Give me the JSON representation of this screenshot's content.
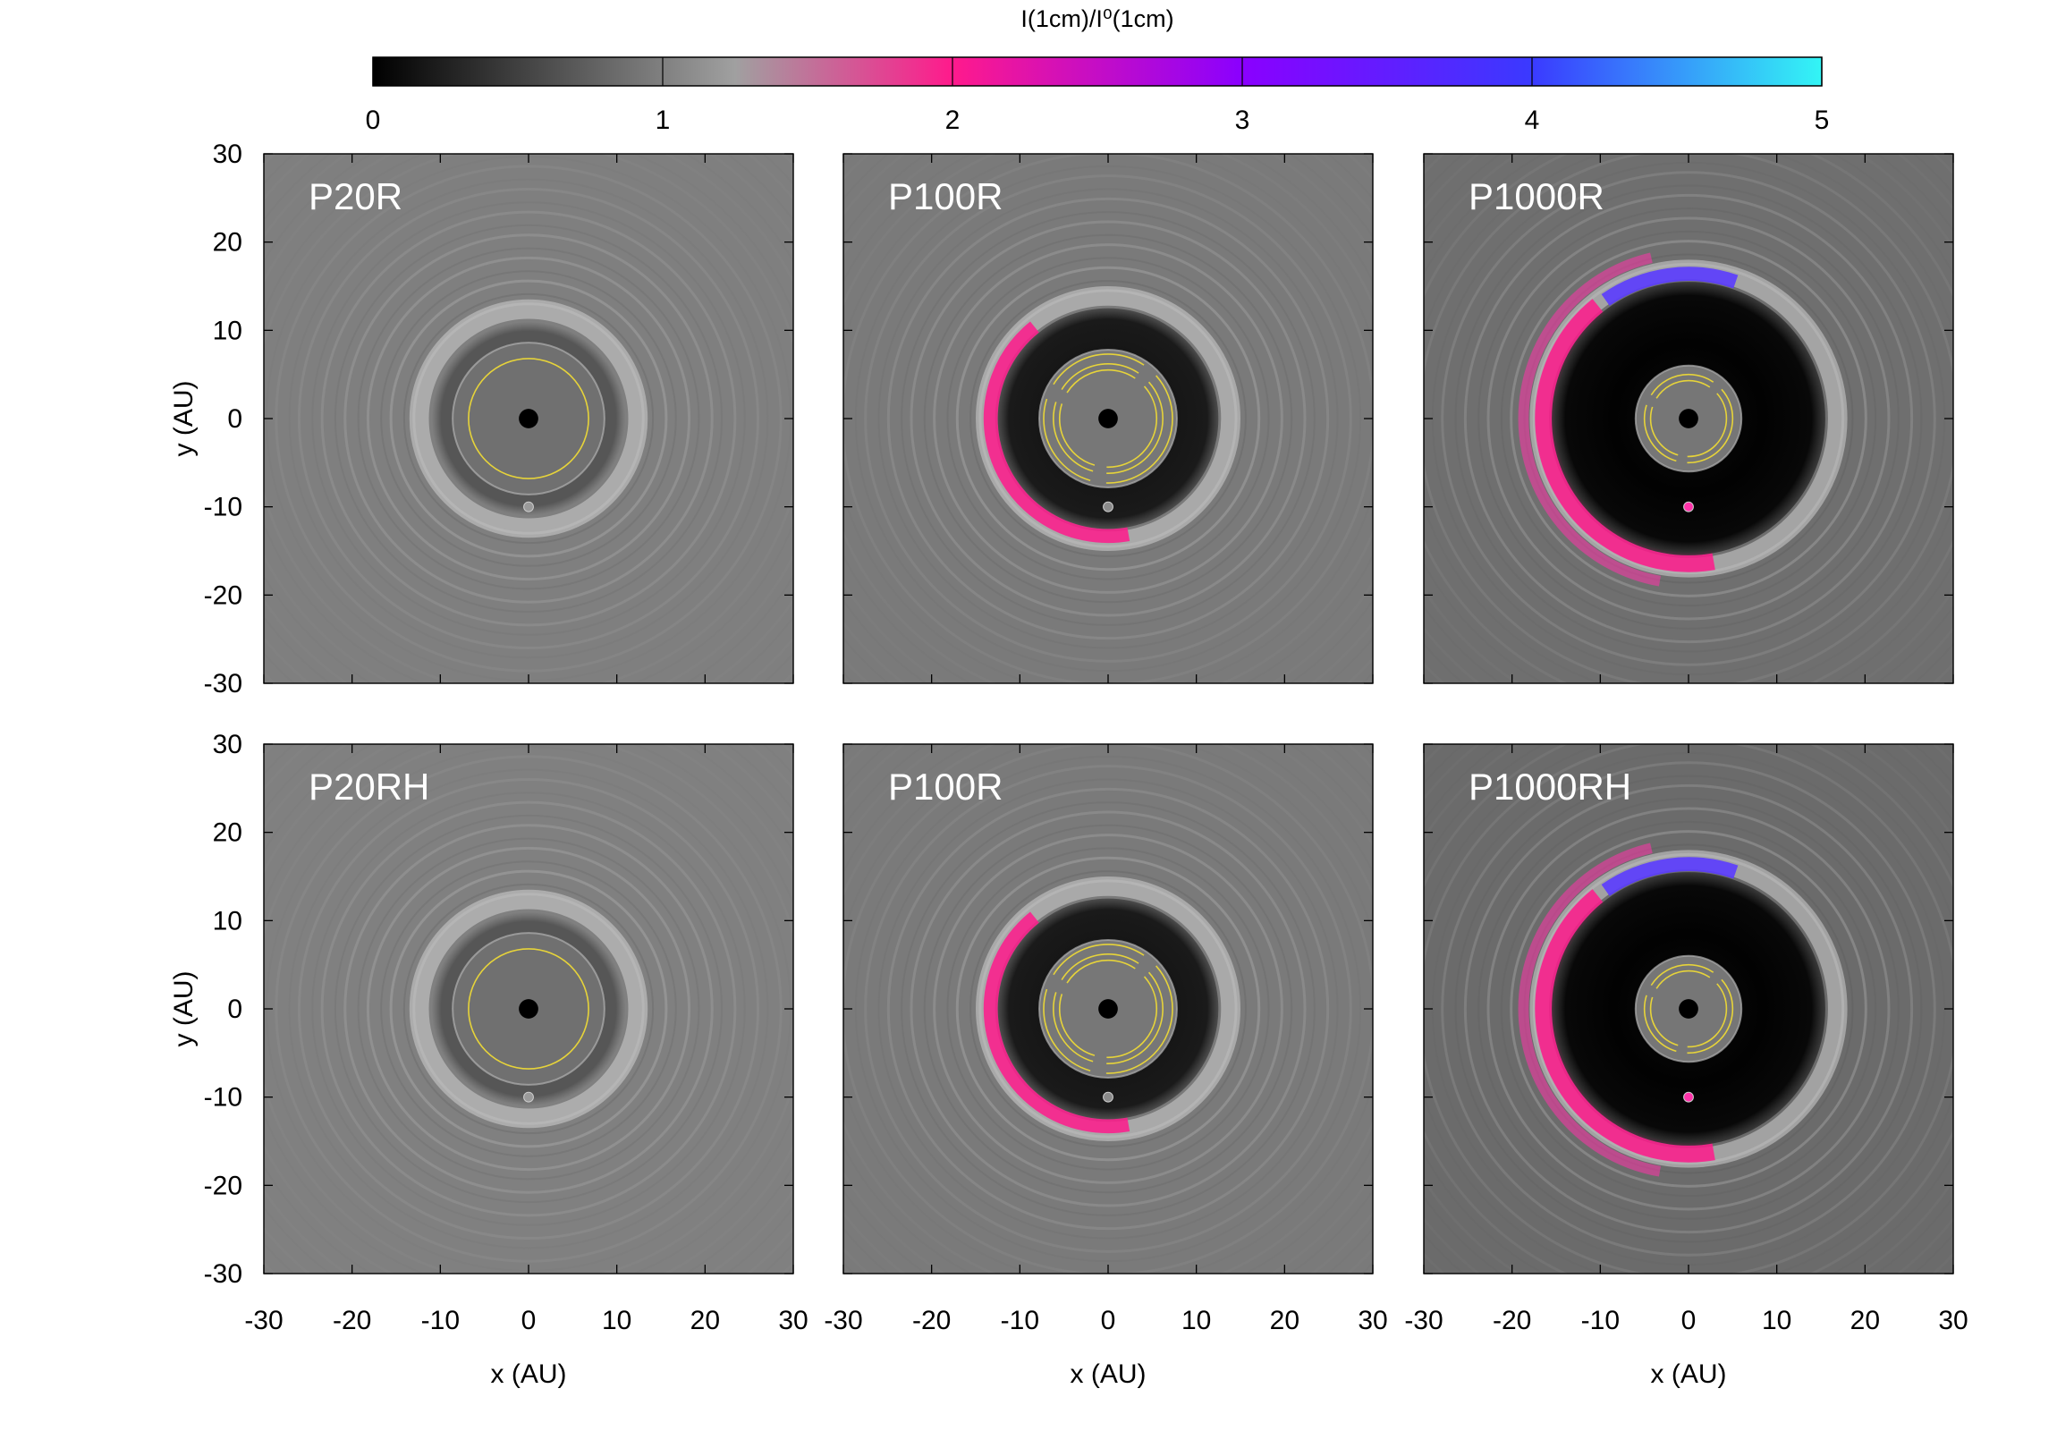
{
  "colorbar": {
    "title": "I(1cm)/I⁰(1cm)",
    "min": 0,
    "max": 5,
    "ticks": [
      "0",
      "1",
      "2",
      "3",
      "4",
      "5"
    ],
    "stops": [
      {
        "value": 0,
        "color": "#000000"
      },
      {
        "value": 1.25,
        "color": "#a0a0a0"
      },
      {
        "value": 2,
        "color": "#ff1a8c"
      },
      {
        "value": 3,
        "color": "#8a00ff"
      },
      {
        "value": 4,
        "color": "#3a3aff"
      },
      {
        "value": 5,
        "color": "#33f5f5"
      }
    ]
  },
  "chart_data": [
    {
      "type": "heatmap",
      "label": "P20R",
      "row": 0,
      "col": 0,
      "xlabel": "",
      "ylabel": "y (AU)",
      "xlim": [
        -30,
        30
      ],
      "ylim": [
        -30,
        30
      ],
      "background": "#7f7f7f",
      "gap_outer_radius": 11,
      "gap_depth": 0.35,
      "pink_arc": false,
      "blue_arc": false,
      "yellow_contours": [
        6.8
      ],
      "planet": [
        0,
        -10
      ],
      "planet_color": "#9a9a9a"
    },
    {
      "type": "heatmap",
      "label": "P100R",
      "row": 0,
      "col": 1,
      "xlabel": "",
      "ylabel": "",
      "xlim": [
        -30,
        30
      ],
      "ylim": [
        -30,
        30
      ],
      "background": "#7a7a7a",
      "gap_outer_radius": 12.5,
      "gap_depth": 0.85,
      "pink_arc": true,
      "blue_arc": false,
      "yellow_contours": [
        5.5,
        6.2,
        7.3
      ],
      "planet": [
        0,
        -10
      ],
      "planet_color": "#8a8a8a"
    },
    {
      "type": "heatmap",
      "label": "P1000R",
      "row": 0,
      "col": 2,
      "xlabel": "",
      "ylabel": "",
      "xlim": [
        -30,
        30
      ],
      "ylim": [
        -30,
        30
      ],
      "background": "#6f6f6f",
      "gap_outer_radius": 15.5,
      "gap_depth": 1.0,
      "pink_arc": true,
      "blue_arc": true,
      "yellow_contours": [
        4.3,
        5.0
      ],
      "planet": [
        0,
        -10
      ],
      "planet_color": "#ff33aa"
    },
    {
      "type": "heatmap",
      "label": "P20RH",
      "row": 1,
      "col": 0,
      "xlabel": "x (AU)",
      "ylabel": "y (AU)",
      "xlim": [
        -30,
        30
      ],
      "ylim": [
        -30,
        30
      ],
      "background": "#808080",
      "gap_outer_radius": 11,
      "gap_depth": 0.35,
      "pink_arc": false,
      "blue_arc": false,
      "yellow_contours": [
        6.8
      ],
      "planet": [
        0,
        -10
      ],
      "planet_color": "#9a9a9a"
    },
    {
      "type": "heatmap",
      "label": "P100R",
      "row": 1,
      "col": 1,
      "xlabel": "x (AU)",
      "ylabel": "",
      "xlim": [
        -30,
        30
      ],
      "ylim": [
        -30,
        30
      ],
      "background": "#7a7a7a",
      "gap_outer_radius": 12.5,
      "gap_depth": 0.85,
      "pink_arc": true,
      "blue_arc": false,
      "yellow_contours": [
        5.5,
        6.2,
        7.3
      ],
      "planet": [
        0,
        -10
      ],
      "planet_color": "#8a8a8a"
    },
    {
      "type": "heatmap",
      "label": "P1000RH",
      "row": 1,
      "col": 2,
      "xlabel": "x (AU)",
      "ylabel": "",
      "xlim": [
        -30,
        30
      ],
      "ylim": [
        -30,
        30
      ],
      "background": "#6b6b6b",
      "gap_outer_radius": 15.5,
      "gap_depth": 1.0,
      "pink_arc": true,
      "blue_arc": true,
      "yellow_contours": [
        4.3,
        5.0
      ],
      "planet": [
        0,
        -10
      ],
      "planet_color": "#ff33aa"
    }
  ],
  "axis_ticks": [
    "-30",
    "-20",
    "-10",
    "0",
    "10",
    "20",
    "30"
  ]
}
